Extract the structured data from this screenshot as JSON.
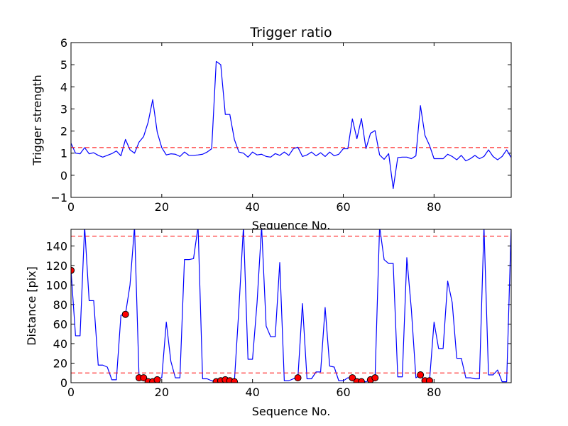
{
  "chart_data": [
    {
      "type": "line",
      "title": "Trigger ratio",
      "xlabel": "Sequence No.",
      "ylabel": "Trigger strength",
      "xlim": [
        0,
        97
      ],
      "ylim": [
        -1,
        6
      ],
      "xticks": [
        "0",
        "20",
        "40",
        "60",
        "80"
      ],
      "yticks": [
        "−1",
        "0",
        "1",
        "2",
        "3",
        "4",
        "5",
        "6"
      ],
      "grid": false,
      "series": [
        {
          "color": "#0000ff",
          "style": "solid",
          "x": [
            0,
            1,
            2,
            3,
            4,
            5,
            6,
            7,
            8,
            9,
            10,
            11,
            12,
            13,
            14,
            15,
            16,
            17,
            18,
            19,
            20,
            21,
            22,
            23,
            24,
            25,
            26,
            27,
            28,
            29,
            30,
            31,
            32,
            33,
            34,
            35,
            36,
            37,
            38,
            39,
            40,
            41,
            42,
            43,
            44,
            45,
            46,
            47,
            48,
            49,
            50,
            51,
            52,
            53,
            54,
            55,
            56,
            57,
            58,
            59,
            60,
            61,
            62,
            63,
            64,
            65,
            66,
            67,
            68,
            69,
            70,
            71,
            72,
            73,
            74,
            75,
            76,
            77,
            78,
            79,
            80,
            81,
            82,
            83,
            84,
            85,
            86,
            87,
            88,
            89,
            90,
            91,
            92,
            93,
            94,
            95,
            96,
            97
          ],
          "y": [
            1.45,
            1.0,
            0.97,
            1.25,
            0.97,
            1.02,
            0.9,
            0.82,
            0.9,
            0.98,
            1.1,
            0.88,
            1.62,
            1.15,
            1.0,
            1.5,
            1.75,
            2.4,
            3.42,
            1.95,
            1.25,
            0.92,
            0.97,
            0.95,
            0.85,
            1.05,
            0.9,
            0.9,
            0.92,
            0.95,
            1.05,
            1.2,
            5.15,
            5.0,
            2.75,
            2.75,
            1.62,
            1.05,
            1.0,
            0.82,
            1.05,
            0.92,
            0.95,
            0.85,
            0.82,
            0.98,
            0.9,
            1.05,
            0.9,
            1.2,
            1.27,
            0.85,
            0.92,
            1.05,
            0.88,
            1.02,
            0.85,
            1.05,
            0.88,
            0.95,
            1.2,
            1.2,
            2.55,
            1.65,
            2.57,
            1.2,
            1.9,
            2.02,
            0.92,
            0.72,
            0.98,
            -0.6,
            0.8,
            0.82,
            0.82,
            0.75,
            0.88,
            3.15,
            1.8,
            1.35,
            0.75,
            0.75,
            0.75,
            0.95,
            0.85,
            0.7,
            0.9,
            0.65,
            0.75,
            0.9,
            0.75,
            0.85,
            1.15,
            0.85,
            0.7,
            0.85,
            1.15,
            0.8
          ]
        },
        {
          "color": "#ff0000",
          "style": "dashed",
          "x": [
            0,
            97
          ],
          "y": [
            1.25,
            1.25
          ]
        }
      ]
    },
    {
      "type": "line",
      "title": "",
      "xlabel": "Sequence No.",
      "ylabel": "Distance [pix]",
      "xlim": [
        0,
        97
      ],
      "ylim": [
        0,
        157
      ],
      "xticks": [
        "0",
        "20",
        "40",
        "60",
        "80"
      ],
      "yticks": [
        "0",
        "20",
        "40",
        "60",
        "80",
        "100",
        "120",
        "140"
      ],
      "grid": false,
      "series": [
        {
          "color": "#0000ff",
          "style": "solid",
          "x": [
            0,
            1,
            2,
            3,
            4,
            5,
            6,
            7,
            8,
            9,
            10,
            11,
            12,
            13,
            14,
            15,
            16,
            17,
            18,
            19,
            20,
            21,
            22,
            23,
            24,
            25,
            26,
            27,
            28,
            29,
            30,
            31,
            32,
            33,
            34,
            35,
            36,
            37,
            38,
            39,
            40,
            41,
            42,
            43,
            44,
            45,
            46,
            47,
            48,
            49,
            50,
            51,
            52,
            53,
            54,
            55,
            56,
            57,
            58,
            59,
            60,
            61,
            62,
            63,
            64,
            65,
            66,
            67,
            68,
            69,
            70,
            71,
            72,
            73,
            74,
            75,
            76,
            77,
            78,
            79,
            80,
            81,
            82,
            83,
            84,
            85,
            86,
            87,
            88,
            89,
            90,
            91,
            92,
            93,
            94,
            95,
            96,
            97
          ],
          "y": [
            115,
            48,
            48,
            160,
            84,
            84,
            18,
            18,
            16,
            3,
            3,
            69,
            70,
            100,
            160,
            5,
            5,
            2,
            2,
            4,
            5,
            62,
            22,
            5,
            5,
            126,
            126,
            127,
            160,
            4,
            4,
            2,
            1,
            2,
            3,
            2,
            1,
            76,
            160,
            24,
            24,
            82,
            160,
            58,
            47,
            47,
            123,
            2,
            2,
            4,
            5,
            81,
            4,
            4,
            11,
            11,
            77,
            17,
            16,
            2,
            2,
            5,
            5,
            1,
            1,
            1,
            3,
            5,
            160,
            126,
            122,
            122,
            6,
            6,
            128,
            75,
            5,
            8,
            2,
            2,
            62,
            35,
            35,
            104,
            82,
            25,
            25,
            5,
            5,
            4,
            4,
            160,
            8,
            8,
            13,
            1,
            1,
            160
          ]
        },
        {
          "color": "#ff0000",
          "style": "dashed",
          "x": [
            0,
            97
          ],
          "y": [
            150,
            150
          ]
        },
        {
          "color": "#ff0000",
          "style": "dashed",
          "x": [
            0,
            97
          ],
          "y": [
            10,
            10
          ]
        },
        {
          "color": "#ff0000",
          "style": "markers",
          "x": [
            0,
            12,
            15,
            16,
            17,
            18,
            19,
            32,
            33,
            34,
            35,
            36,
            50,
            62,
            63,
            64,
            66,
            67,
            77,
            78,
            79
          ],
          "y": [
            115,
            70,
            5,
            5,
            1,
            1,
            3,
            1,
            2,
            3,
            2,
            1,
            5,
            5,
            1,
            1,
            3,
            5,
            8,
            2,
            2
          ]
        }
      ]
    }
  ]
}
